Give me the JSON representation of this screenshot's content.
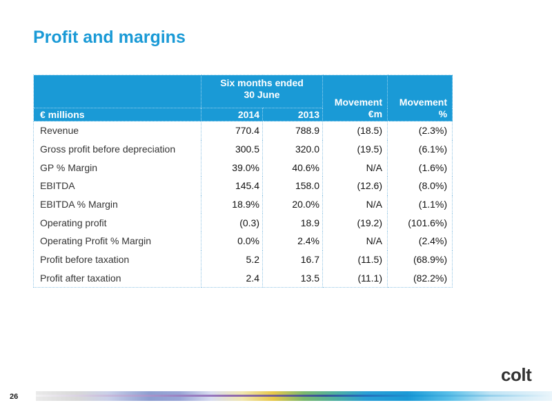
{
  "slide": {
    "title": "Profit and margins",
    "page_number": "26",
    "brand": "colt"
  },
  "table": {
    "header": {
      "unit_label": "€ millions",
      "group_line1": "Six months ended",
      "group_line2": "30 June",
      "year_current": "2014",
      "year_prior": "2013",
      "movement_abs_line1": "Movement",
      "movement_abs_line2": "€m",
      "movement_pct_line1": "Movement",
      "movement_pct_line2": "%"
    },
    "rows": [
      {
        "label": "Revenue",
        "y2014": "770.4",
        "y2013": "788.9",
        "movement_m": "(18.5)",
        "movement_pct": "(2.3%)"
      },
      {
        "label": "Gross profit before depreciation",
        "y2014": "300.5",
        "y2013": "320.0",
        "movement_m": "(19.5)",
        "movement_pct": "(6.1%)"
      },
      {
        "label": "GP % Margin",
        "y2014": "39.0%",
        "y2013": "40.6%",
        "movement_m": "N/A",
        "movement_pct": "(1.6%)"
      },
      {
        "label": "EBITDA",
        "y2014": "145.4",
        "y2013": "158.0",
        "movement_m": "(12.6)",
        "movement_pct": "(8.0%)"
      },
      {
        "label": "EBITDA % Margin",
        "y2014": "18.9%",
        "y2013": "20.0%",
        "movement_m": "N/A",
        "movement_pct": "(1.1%)"
      },
      {
        "label": "Operating profit",
        "y2014": "(0.3)",
        "y2013": "18.9",
        "movement_m": "(19.2)",
        "movement_pct": "(101.6%)"
      },
      {
        "label": "Operating Profit % Margin",
        "y2014": "0.0%",
        "y2013": "2.4%",
        "movement_m": "N/A",
        "movement_pct": "(2.4%)"
      },
      {
        "label": "Profit before taxation",
        "y2014": "5.2",
        "y2013": "16.7",
        "movement_m": "(11.5)",
        "movement_pct": "(68.9%)"
      },
      {
        "label": "Profit after taxation",
        "y2014": "2.4",
        "y2013": "13.5",
        "movement_m": "(11.1)",
        "movement_pct": "(82.2%)"
      }
    ]
  },
  "colors": {
    "accent": "#1a9ad6",
    "text": "#111111",
    "logo": "#333333"
  }
}
